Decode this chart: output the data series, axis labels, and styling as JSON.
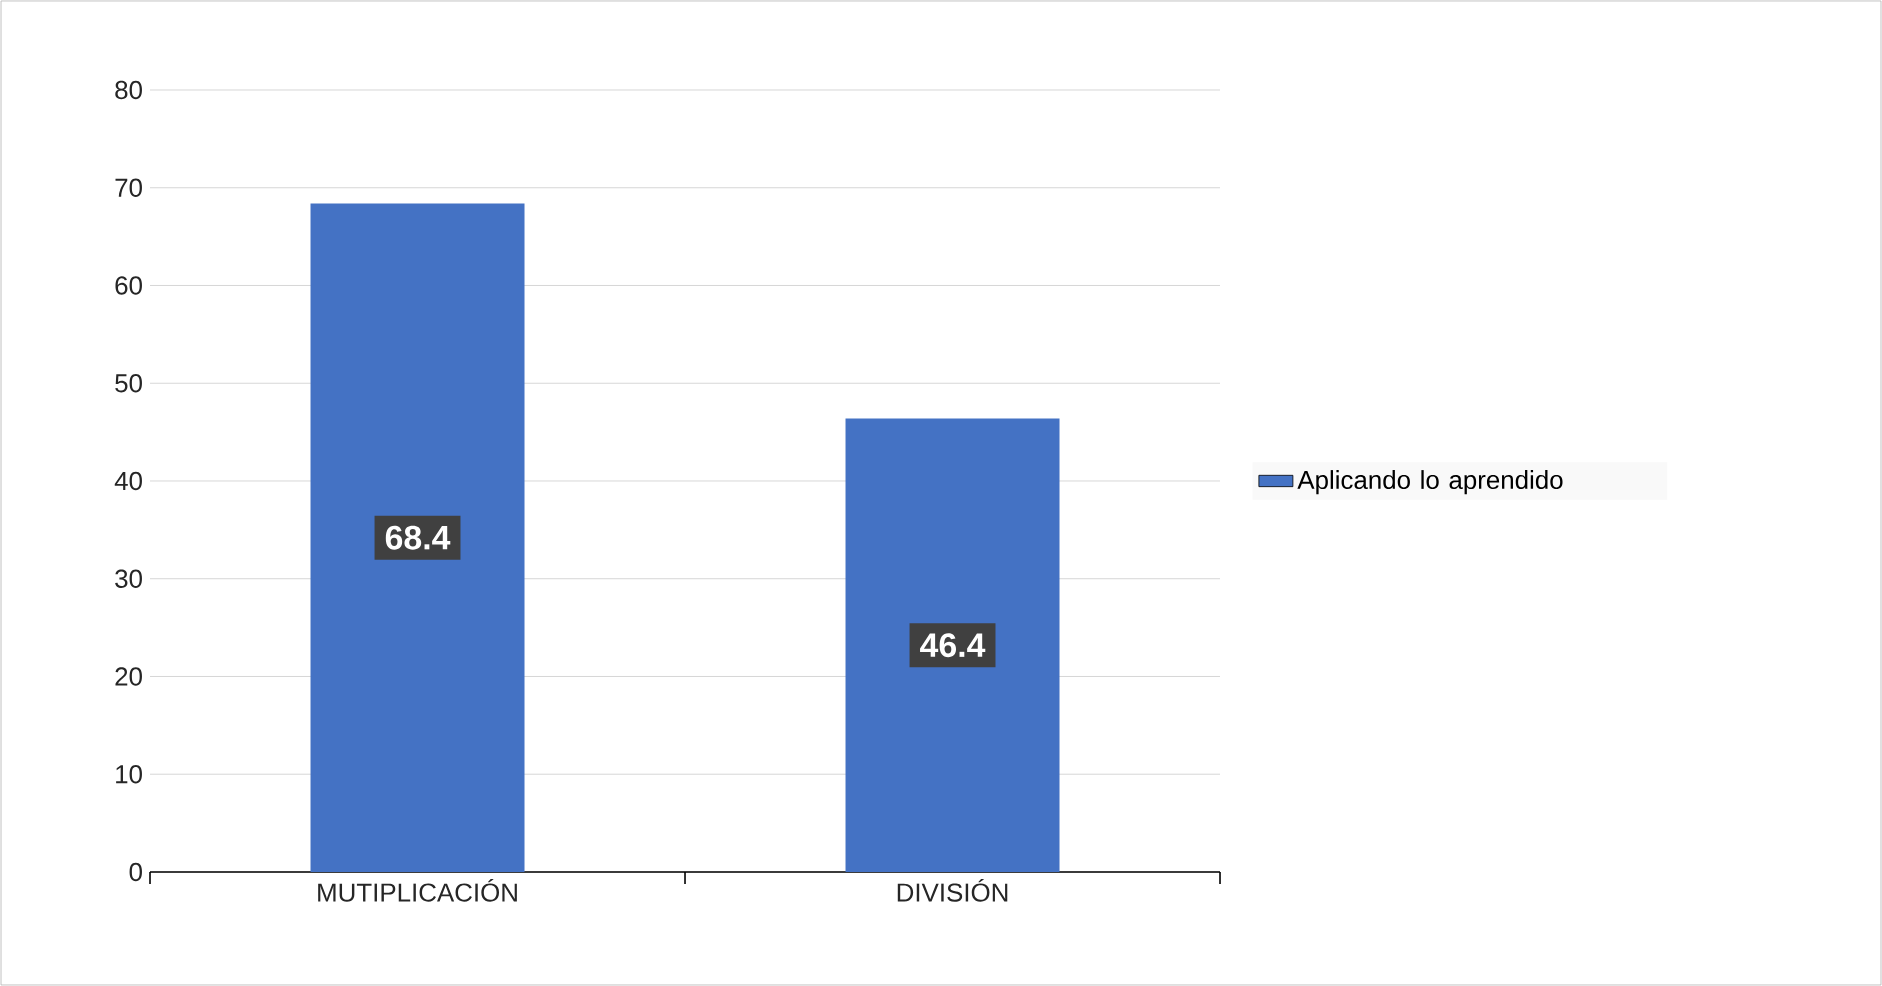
{
  "chart_data": {
    "type": "bar",
    "categories": [
      "MUTIPLICACIÓN",
      "DIVISIÓN"
    ],
    "series": [
      {
        "name": "Aplicando lo aprendido",
        "color": "#4472c4",
        "values": [
          68.4,
          46.4
        ]
      }
    ],
    "ylim": [
      0,
      80
    ],
    "yticks": [
      0,
      10,
      20,
      30,
      40,
      50,
      60,
      70,
      80
    ],
    "grid": "y",
    "legend": "right",
    "data_labels": true
  }
}
